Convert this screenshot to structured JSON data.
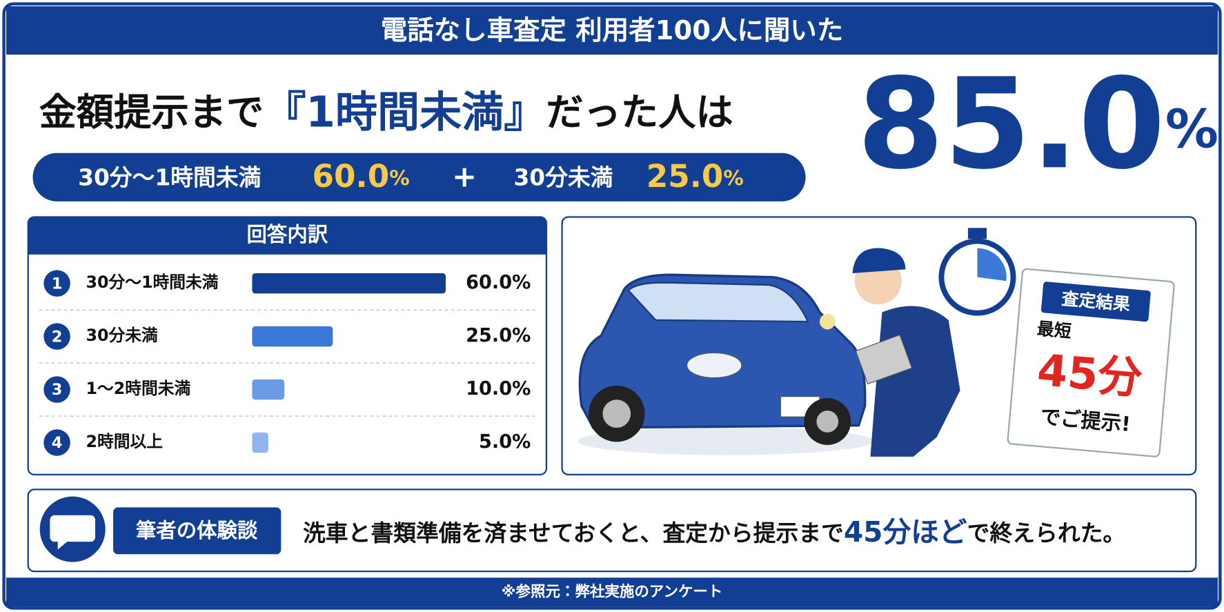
{
  "header": {
    "title": "電話なし車査定 利用者100人に聞いた"
  },
  "headline": {
    "before": "金額提示まで",
    "highlight": "『1時間未満』",
    "after": "だった人は",
    "total": {
      "value": "85.0",
      "unit": "%"
    },
    "parts": [
      {
        "label": "30分～1時間未満",
        "value": "60.0",
        "unit": "%"
      },
      {
        "operator": "+"
      },
      {
        "label": "30分未満",
        "value": "25.0",
        "unit": "%"
      }
    ]
  },
  "breakdown": {
    "title": "回答内訳",
    "ranks": [
      "1",
      "2",
      "3",
      "4"
    ],
    "categories": [
      "30分～1時間未満",
      "30分未満",
      "1～2時間未満",
      "2時間以上"
    ],
    "values": [
      60,
      25,
      10,
      5
    ],
    "value_labels": [
      "60.0%",
      "25.0%",
      "10.0%",
      "5.0%"
    ],
    "colors": [
      "#123f94",
      "#3c78d8",
      "#6a9be6",
      "#8fb4ef"
    ]
  },
  "illustration": {
    "sign": {
      "title": "査定結果",
      "line1": "最短",
      "time": "45分",
      "line2": "でご提示!"
    }
  },
  "comment": {
    "tag": "筆者の体験談",
    "before": "洗車と書類準備を済ませておくと、査定から提示まで",
    "highlight": "45分ほど",
    "after": "で終えられた。"
  },
  "footer": {
    "source": "※参照元：弊社実施のアンケート"
  }
}
